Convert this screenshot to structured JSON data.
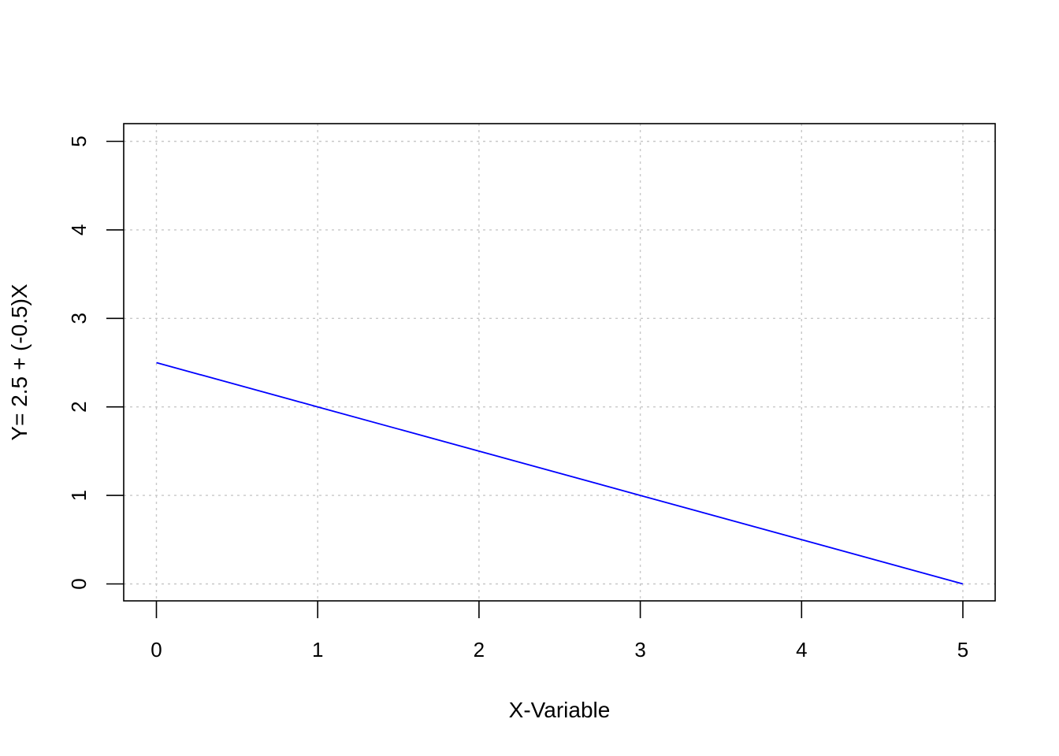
{
  "chart_data": {
    "type": "line",
    "title": "",
    "xlabel": "X-Variable",
    "ylabel": "Y= 2.5 + (-0.5)X",
    "xlim": [
      0,
      5
    ],
    "ylim": [
      0,
      5
    ],
    "x_ticks": [
      0,
      1,
      2,
      3,
      4,
      5
    ],
    "y_ticks": [
      0,
      1,
      2,
      3,
      4,
      5
    ],
    "grid": true,
    "grid_style": "dotted",
    "series": [
      {
        "x": [
          0,
          1,
          2,
          3,
          4,
          5
        ],
        "y": [
          2.5,
          2.0,
          1.5,
          1.0,
          0.5,
          0.0
        ],
        "color": "#0000ff"
      }
    ]
  }
}
